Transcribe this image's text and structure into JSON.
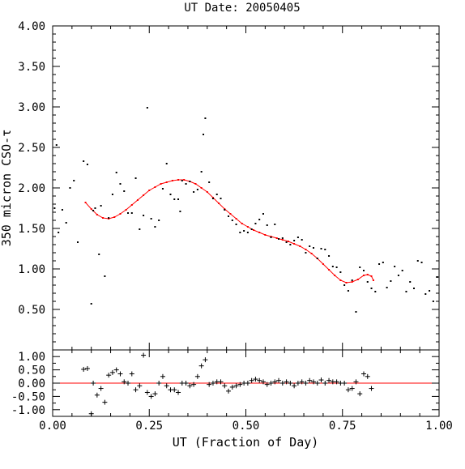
{
  "chart_data": [
    {
      "type": "scatter",
      "panel": "main",
      "title": "UT Date: 20050405",
      "ylabel": "350 micron CSO-τ",
      "xlim": [
        0.0,
        1.0
      ],
      "ylim": [
        0.0,
        4.0
      ],
      "y_ticks": [
        "0.50",
        "1.00",
        "1.50",
        "2.00",
        "2.50",
        "3.00",
        "3.50",
        "4.00"
      ],
      "point_color": "#000000",
      "fit_color": "#ff0000",
      "series": [
        {
          "kind": "points",
          "x": [
            0.005,
            0.01,
            0.015,
            0.025,
            0.035,
            0.045,
            0.055,
            0.065,
            0.08,
            0.09,
            0.1,
            0.105,
            0.11,
            0.12,
            0.125,
            0.135,
            0.145,
            0.155,
            0.165,
            0.175,
            0.185,
            0.195,
            0.205,
            0.215,
            0.225,
            0.235,
            0.245,
            0.255,
            0.265,
            0.275,
            0.285,
            0.295,
            0.305,
            0.315,
            0.325,
            0.33,
            0.335,
            0.345,
            0.355,
            0.365,
            0.375,
            0.385,
            0.39,
            0.395,
            0.405,
            0.415,
            0.425,
            0.435,
            0.445,
            0.455,
            0.465,
            0.475,
            0.485,
            0.495,
            0.505,
            0.515,
            0.525,
            0.535,
            0.545,
            0.555,
            0.565,
            0.575,
            0.585,
            0.595,
            0.605,
            0.615,
            0.625,
            0.635,
            0.645,
            0.655,
            0.665,
            0.675,
            0.685,
            0.695,
            0.705,
            0.715,
            0.725,
            0.735,
            0.745,
            0.755,
            0.765,
            0.775,
            0.785,
            0.795,
            0.805,
            0.815,
            0.825,
            0.835,
            0.845,
            0.855,
            0.865,
            0.875,
            0.885,
            0.895,
            0.905,
            0.915,
            0.925,
            0.935,
            0.945,
            0.955,
            0.965,
            0.975,
            0.985,
            0.995
          ],
          "y": [
            1.75,
            2.53,
            1.45,
            1.73,
            1.57,
            2.0,
            2.09,
            1.33,
            2.33,
            2.29,
            0.57,
            1.72,
            1.75,
            1.18,
            1.78,
            0.91,
            1.63,
            1.92,
            2.19,
            2.05,
            1.96,
            1.69,
            1.69,
            2.12,
            1.49,
            1.66,
            2.99,
            1.62,
            1.52,
            1.6,
            1.99,
            2.3,
            1.92,
            1.86,
            1.86,
            1.71,
            2.09,
            2.05,
            2.08,
            1.95,
            1.98,
            2.2,
            2.66,
            2.86,
            2.07,
            1.87,
            1.92,
            1.87,
            1.73,
            1.65,
            1.6,
            1.55,
            1.45,
            1.47,
            1.45,
            1.49,
            1.56,
            1.61,
            1.68,
            1.54,
            1.39,
            1.55,
            1.37,
            1.38,
            1.33,
            1.3,
            1.35,
            1.39,
            1.36,
            1.2,
            1.28,
            1.26,
            1.13,
            1.25,
            1.24,
            1.16,
            1.03,
            1.02,
            0.96,
            0.8,
            0.73,
            0.86,
            0.47,
            1.02,
            0.98,
            0.84,
            0.76,
            0.72,
            1.06,
            1.08,
            0.77,
            0.85,
            1.03,
            0.92,
            0.98,
            0.72,
            0.84,
            0.76,
            1.1,
            1.08,
            0.69,
            0.73,
            0.6,
            0.9
          ]
        },
        {
          "kind": "fit",
          "x": [
            0.085,
            0.1,
            0.115,
            0.13,
            0.145,
            0.16,
            0.175,
            0.19,
            0.205,
            0.22,
            0.235,
            0.25,
            0.265,
            0.28,
            0.295,
            0.31,
            0.325,
            0.34,
            0.355,
            0.37,
            0.385,
            0.4,
            0.415,
            0.43,
            0.445,
            0.46,
            0.475,
            0.49,
            0.505,
            0.52,
            0.535,
            0.55,
            0.565,
            0.58,
            0.595,
            0.61,
            0.625,
            0.64,
            0.655,
            0.67,
            0.685,
            0.7,
            0.715,
            0.73,
            0.745,
            0.76,
            0.775,
            0.79,
            0.805,
            0.815,
            0.825,
            0.83
          ],
          "y": [
            1.82,
            1.74,
            1.67,
            1.63,
            1.62,
            1.64,
            1.68,
            1.73,
            1.79,
            1.85,
            1.91,
            1.97,
            2.01,
            2.05,
            2.07,
            2.09,
            2.1,
            2.1,
            2.08,
            2.05,
            2.0,
            1.95,
            1.88,
            1.81,
            1.74,
            1.68,
            1.62,
            1.56,
            1.52,
            1.48,
            1.45,
            1.42,
            1.4,
            1.38,
            1.36,
            1.34,
            1.31,
            1.28,
            1.24,
            1.19,
            1.13,
            1.06,
            0.99,
            0.92,
            0.86,
            0.83,
            0.84,
            0.87,
            0.92,
            0.93,
            0.91,
            0.86
          ]
        }
      ]
    },
    {
      "type": "scatter",
      "panel": "residuals",
      "xlabel": "UT (Fraction of Day)",
      "xlim": [
        0.0,
        1.0
      ],
      "ylim": [
        -1.25,
        1.25
      ],
      "x_ticks": [
        "0.00",
        "0.25",
        "0.50",
        "0.75",
        "1.00"
      ],
      "y_ticks": [
        "-1.00",
        "-0.50",
        "0.00",
        "0.50",
        "1.00"
      ],
      "marker": "+",
      "marker_color": "#000000",
      "zero_line_color": "#ff0000",
      "x": [
        0.08,
        0.09,
        0.1,
        0.105,
        0.115,
        0.125,
        0.135,
        0.145,
        0.155,
        0.165,
        0.175,
        0.185,
        0.195,
        0.205,
        0.215,
        0.225,
        0.235,
        0.245,
        0.255,
        0.265,
        0.275,
        0.285,
        0.295,
        0.305,
        0.315,
        0.325,
        0.335,
        0.345,
        0.355,
        0.365,
        0.375,
        0.385,
        0.395,
        0.405,
        0.415,
        0.425,
        0.435,
        0.445,
        0.455,
        0.465,
        0.475,
        0.485,
        0.495,
        0.505,
        0.515,
        0.525,
        0.535,
        0.545,
        0.555,
        0.565,
        0.575,
        0.585,
        0.595,
        0.605,
        0.615,
        0.625,
        0.635,
        0.645,
        0.655,
        0.665,
        0.675,
        0.685,
        0.695,
        0.705,
        0.715,
        0.725,
        0.735,
        0.745,
        0.755,
        0.765,
        0.775,
        0.785,
        0.795,
        0.805,
        0.815,
        0.825
      ],
      "y": [
        0.52,
        0.55,
        -1.15,
        0.0,
        -0.45,
        -0.2,
        -0.72,
        0.3,
        0.4,
        0.5,
        0.35,
        0.05,
        0.0,
        0.35,
        -0.25,
        -0.1,
        1.05,
        -0.35,
        -0.5,
        -0.4,
        0.0,
        0.25,
        -0.1,
        -0.25,
        -0.25,
        -0.35,
        0.0,
        0.0,
        -0.1,
        -0.05,
        0.25,
        0.65,
        0.88,
        -0.05,
        0.0,
        0.05,
        0.05,
        -0.1,
        -0.3,
        -0.15,
        -0.1,
        -0.05,
        0.0,
        0.0,
        0.1,
        0.15,
        0.1,
        0.05,
        -0.05,
        0.0,
        0.05,
        0.1,
        0.0,
        0.05,
        0.0,
        -0.1,
        0.0,
        0.05,
        0.0,
        0.1,
        0.05,
        0.0,
        0.12,
        0.0,
        0.1,
        0.05,
        0.05,
        0.0,
        0.0,
        -0.25,
        -0.2,
        0.05,
        -0.4,
        0.35,
        0.25,
        -0.2
      ]
    }
  ]
}
